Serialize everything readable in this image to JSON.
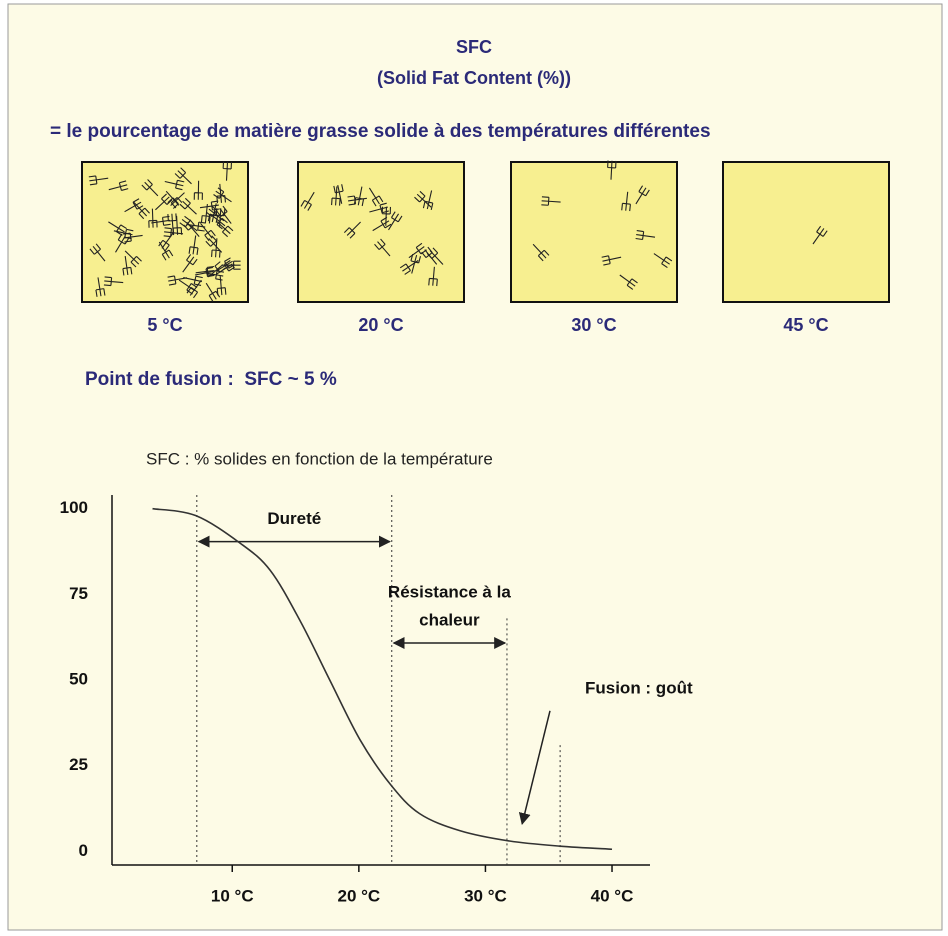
{
  "header": {
    "title": "SFC",
    "subtitle": "(Solid Fat Content (%))",
    "definition": "= le pourcentage de matière grasse solide à des températures différentes"
  },
  "boxes": [
    {
      "label": "5 °C"
    },
    {
      "label": "20 °C"
    },
    {
      "label": "30 °C"
    },
    {
      "label": "45 °C"
    }
  ],
  "note": "Point de fusion :  SFC ~ 5 %",
  "chart_data": {
    "type": "line",
    "title": "SFC : % solides en fonction de la température",
    "x": [
      3.7,
      7.1,
      10.6,
      13,
      15.4,
      17.7,
      20.1,
      22.5,
      24.8,
      28,
      31.9,
      35.9,
      40
    ],
    "values": [
      100,
      98,
      90,
      82,
      67,
      50,
      32.5,
      19.5,
      11,
      6,
      3,
      1.5,
      0.6
    ],
    "color": "#333333",
    "xlim": [
      0.5,
      43
    ],
    "ylim": [
      -4,
      104
    ],
    "xticks": [
      {
        "value": 10,
        "label": "10 °C"
      },
      {
        "value": 20,
        "label": "20 °C"
      },
      {
        "value": 30,
        "label": "30 °C"
      },
      {
        "value": 40,
        "label": "40 °C"
      }
    ],
    "yticks": [
      0,
      25,
      50,
      75,
      100
    ],
    "markers": [
      {
        "x": 7.2,
        "top": 104
      },
      {
        "x": 22.6,
        "top": 104
      },
      {
        "x": 31.7,
        "top": 68
      },
      {
        "x": 35.9,
        "top": 31
      }
    ],
    "spans": [
      {
        "label": [
          "Dureté"
        ],
        "from": 7.2,
        "to": 22.6,
        "y": 90.4
      },
      {
        "label": [
          "Résistance à la",
          "chaleur"
        ],
        "from": 22.6,
        "to": 31.7,
        "y": 60.8
      }
    ],
    "arrow": {
      "label": "Fusion : goût",
      "from": [
        35.1,
        41
      ],
      "to": [
        32.9,
        8
      ]
    }
  }
}
